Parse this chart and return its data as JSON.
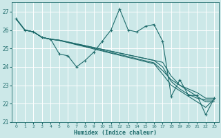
{
  "xlabel": "Humidex (Indice chaleur)",
  "xlim": [
    -0.5,
    23.5
  ],
  "ylim": [
    21.0,
    27.5
  ],
  "yticks": [
    21,
    22,
    23,
    24,
    25,
    26,
    27
  ],
  "xticks": [
    0,
    1,
    2,
    3,
    4,
    5,
    6,
    7,
    8,
    9,
    10,
    11,
    12,
    13,
    14,
    15,
    16,
    17,
    18,
    19,
    20,
    21,
    22,
    23
  ],
  "bg_color": "#cce8e8",
  "line_color": "#1e6b6b",
  "grid_color": "#ffffff",
  "main_line": [
    26.6,
    26.0,
    25.9,
    25.6,
    25.5,
    24.7,
    24.6,
    24.0,
    24.35,
    24.8,
    25.4,
    26.0,
    27.15,
    26.0,
    25.9,
    26.2,
    26.3,
    25.4,
    22.4,
    23.3,
    22.45,
    22.45,
    21.4,
    22.3
  ],
  "straight_lines": [
    [
      26.6,
      26.0,
      25.9,
      25.6,
      25.5,
      25.45,
      25.35,
      25.25,
      25.15,
      25.05,
      24.95,
      24.85,
      24.75,
      24.65,
      24.55,
      24.45,
      24.35,
      24.25,
      23.5,
      23.0,
      22.8,
      22.6,
      22.3,
      22.3
    ],
    [
      26.6,
      26.0,
      25.9,
      25.6,
      25.5,
      25.45,
      25.35,
      25.25,
      25.15,
      25.05,
      24.95,
      24.85,
      24.75,
      24.65,
      24.55,
      24.45,
      24.35,
      24.0,
      23.2,
      22.8,
      22.5,
      22.3,
      22.2,
      22.2
    ],
    [
      26.6,
      26.0,
      25.9,
      25.6,
      25.5,
      25.44,
      25.33,
      25.22,
      25.11,
      25.0,
      24.89,
      24.78,
      24.67,
      24.56,
      24.44,
      24.33,
      24.22,
      23.8,
      23.3,
      23.0,
      22.7,
      22.4,
      22.1,
      22.1
    ],
    [
      26.6,
      26.0,
      25.9,
      25.6,
      25.5,
      25.43,
      25.32,
      25.2,
      25.09,
      24.97,
      24.86,
      24.74,
      24.63,
      24.51,
      24.4,
      24.28,
      24.17,
      23.6,
      23.0,
      22.7,
      22.4,
      22.1,
      21.8,
      22.25
    ]
  ]
}
